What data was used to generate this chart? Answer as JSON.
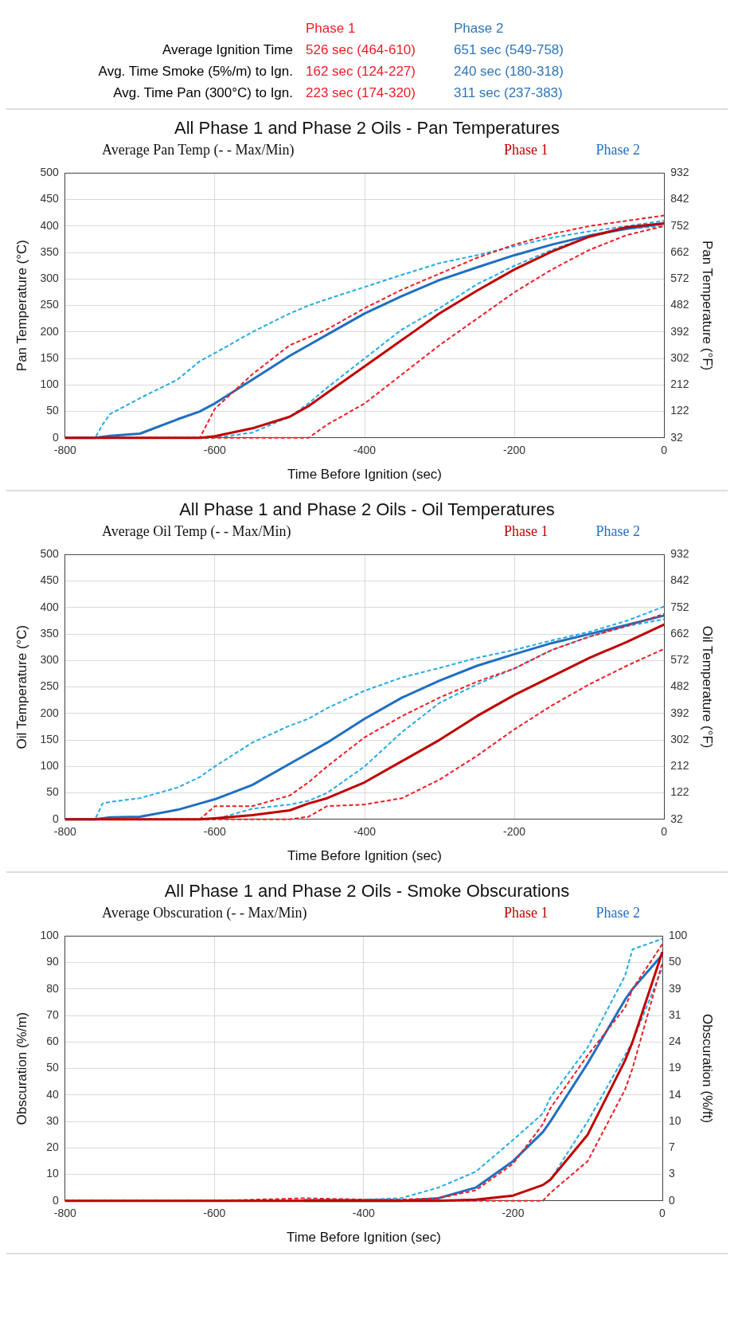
{
  "chart_data": [
    {
      "type": "other",
      "categories": [
        "Phase 1",
        "Phase 2"
      ],
      "colors": [
        "#ee1c24",
        "#2e75b6"
      ],
      "y_categories": [
        "Average Ignition Time",
        "Avg. Time Smoke (5%/m) to Ign.",
        "Avg. Time Pan (300°C) to Ign."
      ],
      "cell_labels": [
        [
          "526 sec (464-610)",
          "651 sec (549-758)"
        ],
        [
          "162 sec (124-227)",
          "240 sec (180-318)"
        ],
        [
          "223 sec (174-320)",
          "311 sec (237-383)"
        ]
      ]
    },
    {
      "type": "line",
      "title": "All Phase 1 and Phase 2 Oils - Pan Temperatures",
      "legend_title": "Average Pan Temp (- - Max/Min)",
      "legend": "top right",
      "xlabel": "Time Before Ignition (sec)",
      "ylabel": "Pan Temperature (°C)",
      "y2label": "Pan Temperature (°F)",
      "x": [
        -800,
        -760,
        -750,
        -740,
        -700,
        -650,
        -620,
        -600,
        -550,
        -500,
        -475,
        -450,
        -400,
        -350,
        -300,
        -250,
        -200,
        -150,
        -100,
        -50,
        0
      ],
      "xlim": [
        -800,
        0
      ],
      "xticks": [
        -800,
        -600,
        -400,
        -200,
        0
      ],
      "ylim": [
        0,
        500
      ],
      "yticks": [
        0,
        50,
        100,
        150,
        200,
        250,
        300,
        350,
        400,
        450,
        500
      ],
      "y2lim": [
        32,
        932
      ],
      "y2ticks": [
        32,
        122,
        212,
        302,
        392,
        482,
        572,
        662,
        752,
        842,
        932
      ],
      "grid": true,
      "marker": "none",
      "series": [
        {
          "name": "Phase 1",
          "color": "#c00000",
          "line_style": "solid",
          "values": [
            0,
            0,
            0,
            0,
            0,
            0,
            0,
            3,
            18,
            40,
            60,
            85,
            135,
            185,
            235,
            278,
            318,
            352,
            380,
            398,
            405
          ]
        },
        {
          "color": "#ee1c24",
          "line_style": "dashed",
          "values": [
            null,
            null,
            0,
            0,
            0,
            0,
            0,
            55,
            120,
            175,
            190,
            205,
            245,
            280,
            310,
            340,
            365,
            385,
            400,
            410,
            420
          ]
        },
        {
          "color": "#ee1c24",
          "line_style": "dashed",
          "values": [
            null,
            null,
            0,
            0,
            0,
            0,
            0,
            0,
            0,
            null,
            0,
            25,
            65,
            120,
            175,
            225,
            275,
            318,
            355,
            383,
            400
          ]
        },
        {
          "name": "Phase 2",
          "color": "#1f6fc0",
          "line_style": "solid",
          "values": [
            0,
            0,
            2,
            4,
            8,
            35,
            50,
            65,
            110,
            155,
            175,
            195,
            235,
            268,
            298,
            322,
            345,
            365,
            382,
            395,
            405
          ]
        },
        {
          "color": "#22aae6",
          "line_style": "dashed",
          "values": [
            0,
            0,
            25,
            45,
            75,
            110,
            145,
            160,
            200,
            235,
            250,
            262,
            285,
            308,
            330,
            345,
            362,
            378,
            390,
            400,
            410
          ]
        },
        {
          "color": "#22aae6",
          "line_style": "dashed",
          "values": [
            0,
            0,
            0,
            0,
            0,
            0,
            0,
            0,
            10,
            40,
            65,
            95,
            150,
            205,
            245,
            290,
            325,
            355,
            380,
            395,
            400
          ]
        }
      ]
    },
    {
      "type": "line",
      "title": "All Phase 1 and Phase 2 Oils - Oil Temperatures",
      "legend_title": "Average Oil Temp (- - Max/Min)",
      "legend": "top right",
      "xlabel": "Time Before Ignition (sec)",
      "ylabel": "Oil Temperature (°C)",
      "y2label": "Oil Temperature (°F)",
      "x": [
        -800,
        -760,
        -750,
        -740,
        -700,
        -650,
        -620,
        -600,
        -550,
        -500,
        -475,
        -450,
        -400,
        -350,
        -300,
        -250,
        -200,
        -150,
        -100,
        -50,
        0
      ],
      "xlim": [
        -800,
        0
      ],
      "xticks": [
        -800,
        -600,
        -400,
        -200,
        0
      ],
      "ylim": [
        0,
        500
      ],
      "yticks": [
        0,
        50,
        100,
        150,
        200,
        250,
        300,
        350,
        400,
        450,
        500
      ],
      "y2lim": [
        32,
        932
      ],
      "y2ticks": [
        32,
        122,
        212,
        302,
        392,
        482,
        572,
        662,
        752,
        842,
        932
      ],
      "grid": true,
      "marker": "none",
      "series": [
        {
          "name": "Phase 1",
          "color": "#c00000",
          "line_style": "solid",
          "values": [
            0,
            0,
            0,
            0,
            0,
            0,
            0,
            2,
            8,
            17,
            30,
            40,
            70,
            110,
            150,
            195,
            235,
            270,
            305,
            335,
            368
          ]
        },
        {
          "color": "#ee1c24",
          "line_style": "dashed",
          "values": [
            null,
            null,
            null,
            0,
            0,
            0,
            0,
            25,
            25,
            45,
            70,
            100,
            155,
            195,
            230,
            260,
            285,
            320,
            345,
            365,
            388
          ]
        },
        {
          "color": "#ee1c24",
          "line_style": "dashed",
          "values": [
            null,
            null,
            null,
            0,
            0,
            0,
            0,
            0,
            0,
            0,
            5,
            25,
            28,
            40,
            75,
            120,
            170,
            215,
            255,
            290,
            322
          ]
        },
        {
          "name": "Phase 2",
          "color": "#1f6fc0",
          "line_style": "solid",
          "values": [
            0,
            0,
            2,
            4,
            5,
            18,
            30,
            38,
            65,
            105,
            125,
            145,
            190,
            230,
            262,
            290,
            312,
            333,
            350,
            367,
            385
          ]
        },
        {
          "color": "#22aae6",
          "line_style": "dashed",
          "values": [
            0,
            0,
            30,
            33,
            40,
            60,
            80,
            100,
            145,
            177,
            190,
            210,
            243,
            268,
            286,
            305,
            320,
            338,
            354,
            375,
            402
          ]
        },
        {
          "color": "#22aae6",
          "line_style": "dashed",
          "values": [
            0,
            0,
            0,
            0,
            0,
            0,
            0,
            0,
            20,
            28,
            35,
            50,
            100,
            165,
            220,
            255,
            285,
            320,
            345,
            365,
            378
          ]
        }
      ]
    },
    {
      "type": "line",
      "title": "All Phase 1 and Phase 2 Oils - Smoke Obscurations",
      "legend_title": "Average Obscuration (- - Max/Min)",
      "legend": "top right",
      "xlabel": "Time Before Ignition (sec)",
      "ylabel": "Obscuration (%/m)",
      "y2label": "Obscuration (%/ft)",
      "x": [
        -800,
        -600,
        -480,
        -400,
        -350,
        -300,
        -250,
        -200,
        -160,
        -150,
        -100,
        -50,
        -40,
        0
      ],
      "xlim": [
        -800,
        0
      ],
      "xticks": [
        -800,
        -600,
        -400,
        -200,
        0
      ],
      "ylim": [
        0,
        100
      ],
      "yticks": [
        0,
        10,
        20,
        30,
        40,
        50,
        60,
        70,
        80,
        90,
        100
      ],
      "annotations": [
        "0",
        "3",
        "7",
        "10",
        "14",
        "19",
        "24",
        "31",
        "39",
        "50",
        "100"
      ],
      "grid": true,
      "marker": "none",
      "series": [
        {
          "name": "Phase 1",
          "color": "#c00000",
          "line_style": "solid",
          "values": [
            0,
            0,
            0,
            0,
            0,
            0,
            0.5,
            2,
            6,
            8,
            25,
            53,
            60,
            94
          ]
        },
        {
          "color": "#ee1c24",
          "line_style": "dashed",
          "values": [
            0,
            0,
            1,
            0.5,
            0.5,
            1,
            4,
            14,
            29,
            35,
            55,
            73,
            80,
            97
          ]
        },
        {
          "color": "#ee1c24",
          "line_style": "dashed",
          "values": [
            0,
            0,
            0,
            0,
            0,
            0,
            0,
            0,
            0,
            3,
            15,
            42,
            50,
            90
          ]
        },
        {
          "name": "Phase 2",
          "color": "#1f6fc0",
          "line_style": "solid",
          "values": [
            null,
            null,
            0,
            0,
            0,
            1,
            5,
            15,
            26,
            30,
            52,
            76,
            80,
            93
          ]
        },
        {
          "color": "#22aae6",
          "line_style": "dashed",
          "values": [
            null,
            null,
            0.5,
            0.5,
            1,
            5,
            11,
            23,
            33,
            39,
            58,
            85,
            95,
            99
          ]
        },
        {
          "color": "#22aae6",
          "line_style": "dashed",
          "values": [
            null,
            null,
            0,
            0,
            0,
            0,
            0,
            2,
            6,
            8,
            30,
            55,
            60,
            88
          ]
        }
      ]
    }
  ]
}
